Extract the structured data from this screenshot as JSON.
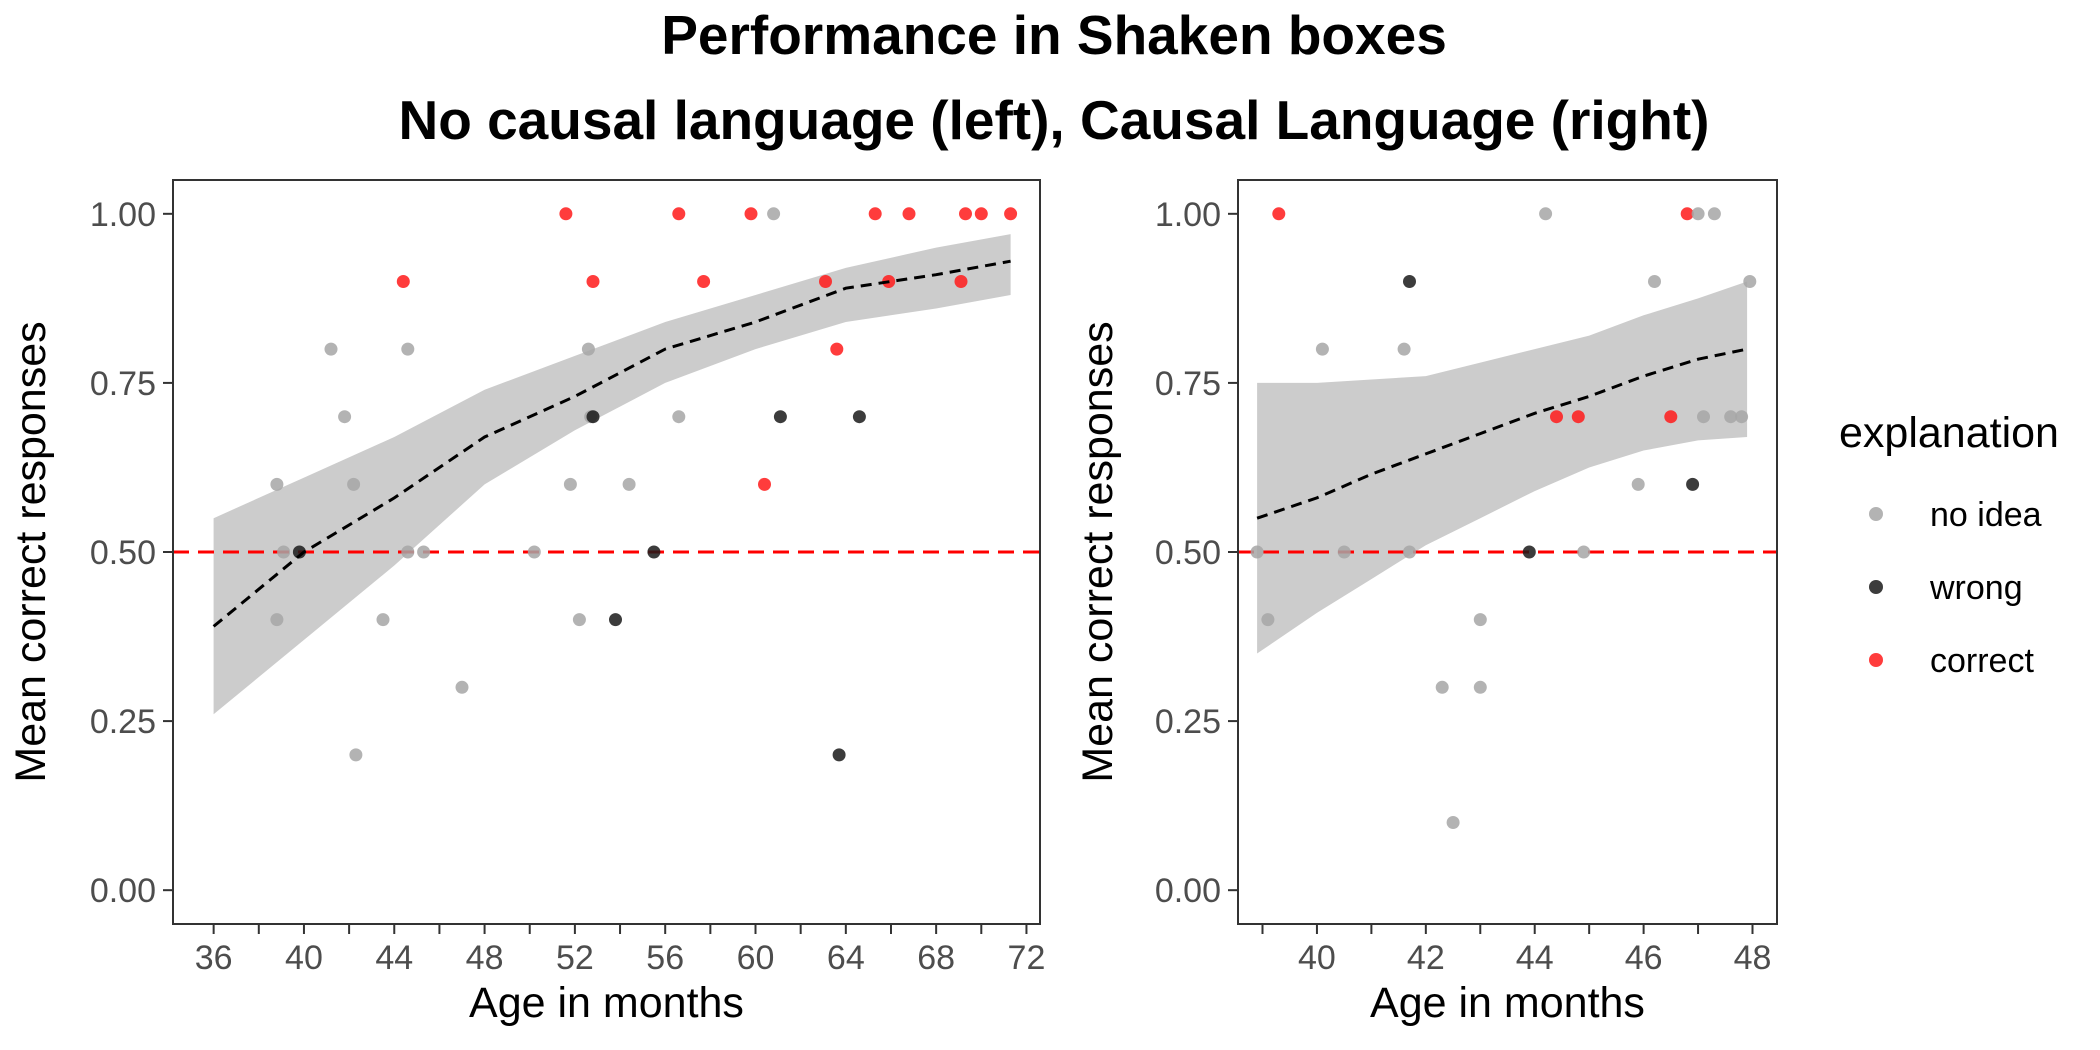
{
  "title": "Performance in Shaken boxes",
  "subtitle": "No causal language (left), Causal Language (right)",
  "legend": {
    "title": "explanation",
    "items": [
      {
        "label": "no idea",
        "color": "#a6a6a6"
      },
      {
        "label": "wrong",
        "color": "#1a1a1a"
      },
      {
        "label": "correct",
        "color": "#ff1a1a"
      }
    ]
  },
  "colors": {
    "no idea": "#a6a6a6",
    "wrong": "#1a1a1a",
    "correct": "#ff1a1a",
    "ribbon": "#cccccc",
    "reference_line": "#ff0000",
    "fit_line": "#000000"
  },
  "chart_data": [
    {
      "type": "scatter",
      "panel": "left",
      "xlabel": "Age in months",
      "ylabel": "Mean correct responses",
      "xlim": [
        34.2,
        72.6
      ],
      "ylim": [
        -0.05,
        1.05
      ],
      "x_ticks": [
        36,
        40,
        44,
        48,
        52,
        56,
        60,
        64,
        68,
        72
      ],
      "x_minor_ticks": [
        38,
        42,
        46,
        50,
        54,
        58,
        62,
        66,
        70
      ],
      "y_ticks": [
        "0.00",
        "0.25",
        "0.50",
        "0.75",
        "1.00"
      ],
      "reference_line": {
        "y": 0.5,
        "style": "dashed"
      },
      "fit": {
        "style": "dashed",
        "x": [
          36,
          40,
          44,
          48,
          52,
          56,
          60,
          64,
          68,
          71.3
        ],
        "y": [
          0.39,
          0.5,
          0.58,
          0.67,
          0.73,
          0.8,
          0.84,
          0.89,
          0.91,
          0.93
        ],
        "lower": [
          0.26,
          0.37,
          0.48,
          0.6,
          0.68,
          0.75,
          0.8,
          0.84,
          0.86,
          0.88
        ],
        "upper": [
          0.55,
          0.61,
          0.67,
          0.74,
          0.79,
          0.84,
          0.88,
          0.92,
          0.95,
          0.97
        ]
      },
      "points": [
        {
          "x": 38.8,
          "y": 0.6,
          "explanation": "no idea"
        },
        {
          "x": 38.8,
          "y": 0.4,
          "explanation": "no idea"
        },
        {
          "x": 39.1,
          "y": 0.5,
          "explanation": "no idea"
        },
        {
          "x": 39.8,
          "y": 0.5,
          "explanation": "wrong"
        },
        {
          "x": 41.2,
          "y": 0.8,
          "explanation": "no idea"
        },
        {
          "x": 41.8,
          "y": 0.7,
          "explanation": "no idea"
        },
        {
          "x": 42.2,
          "y": 0.6,
          "explanation": "no idea"
        },
        {
          "x": 42.3,
          "y": 0.2,
          "explanation": "no idea"
        },
        {
          "x": 43.5,
          "y": 0.4,
          "explanation": "no idea"
        },
        {
          "x": 44.4,
          "y": 0.9,
          "explanation": "correct"
        },
        {
          "x": 44.6,
          "y": 0.8,
          "explanation": "no idea"
        },
        {
          "x": 44.6,
          "y": 0.5,
          "explanation": "no idea"
        },
        {
          "x": 45.3,
          "y": 0.5,
          "explanation": "no idea"
        },
        {
          "x": 47.0,
          "y": 0.3,
          "explanation": "no idea"
        },
        {
          "x": 50.2,
          "y": 0.5,
          "explanation": "no idea"
        },
        {
          "x": 51.6,
          "y": 1.0,
          "explanation": "correct"
        },
        {
          "x": 51.8,
          "y": 0.6,
          "explanation": "no idea"
        },
        {
          "x": 52.2,
          "y": 0.4,
          "explanation": "no idea"
        },
        {
          "x": 52.6,
          "y": 0.8,
          "explanation": "no idea"
        },
        {
          "x": 52.7,
          "y": 0.7,
          "explanation": "no idea"
        },
        {
          "x": 52.8,
          "y": 0.7,
          "explanation": "wrong"
        },
        {
          "x": 52.8,
          "y": 0.9,
          "explanation": "correct"
        },
        {
          "x": 53.8,
          "y": 0.4,
          "explanation": "wrong"
        },
        {
          "x": 54.4,
          "y": 0.6,
          "explanation": "no idea"
        },
        {
          "x": 55.5,
          "y": 0.5,
          "explanation": "wrong"
        },
        {
          "x": 56.6,
          "y": 0.7,
          "explanation": "no idea"
        },
        {
          "x": 56.6,
          "y": 1.0,
          "explanation": "correct"
        },
        {
          "x": 57.7,
          "y": 0.9,
          "explanation": "correct"
        },
        {
          "x": 59.8,
          "y": 1.0,
          "explanation": "correct"
        },
        {
          "x": 60.4,
          "y": 0.6,
          "explanation": "correct"
        },
        {
          "x": 60.8,
          "y": 1.0,
          "explanation": "no idea"
        },
        {
          "x": 61.1,
          "y": 0.7,
          "explanation": "wrong"
        },
        {
          "x": 63.1,
          "y": 0.9,
          "explanation": "correct"
        },
        {
          "x": 63.6,
          "y": 0.8,
          "explanation": "correct"
        },
        {
          "x": 63.7,
          "y": 0.2,
          "explanation": "wrong"
        },
        {
          "x": 64.6,
          "y": 0.7,
          "explanation": "wrong"
        },
        {
          "x": 65.3,
          "y": 1.0,
          "explanation": "correct"
        },
        {
          "x": 65.9,
          "y": 0.9,
          "explanation": "correct"
        },
        {
          "x": 66.8,
          "y": 1.0,
          "explanation": "correct"
        },
        {
          "x": 69.1,
          "y": 0.9,
          "explanation": "correct"
        },
        {
          "x": 69.3,
          "y": 1.0,
          "explanation": "correct"
        },
        {
          "x": 70.0,
          "y": 1.0,
          "explanation": "correct"
        },
        {
          "x": 71.3,
          "y": 1.0,
          "explanation": "correct"
        }
      ]
    },
    {
      "type": "scatter",
      "panel": "right",
      "xlabel": "Age in months",
      "ylabel": "Mean correct responses",
      "xlim": [
        38.55,
        48.45
      ],
      "ylim": [
        -0.05,
        1.05
      ],
      "x_ticks": [
        40,
        42,
        44,
        46,
        48
      ],
      "x_minor_ticks": [
        39,
        41,
        43,
        45,
        47
      ],
      "y_ticks": [
        "0.00",
        "0.25",
        "0.50",
        "0.75",
        "1.00"
      ],
      "reference_line": {
        "y": 0.5,
        "style": "dashed"
      },
      "fit": {
        "style": "dashed",
        "x": [
          38.9,
          40,
          41,
          42,
          43,
          44,
          45,
          46,
          47,
          47.9
        ],
        "y": [
          0.55,
          0.58,
          0.615,
          0.645,
          0.675,
          0.705,
          0.73,
          0.76,
          0.785,
          0.8
        ],
        "lower": [
          0.35,
          0.41,
          0.46,
          0.51,
          0.55,
          0.59,
          0.625,
          0.65,
          0.665,
          0.67
        ],
        "upper": [
          0.75,
          0.75,
          0.755,
          0.76,
          0.78,
          0.8,
          0.82,
          0.85,
          0.875,
          0.9
        ]
      },
      "points": [
        {
          "x": 38.9,
          "y": 0.5,
          "explanation": "no idea"
        },
        {
          "x": 39.1,
          "y": 0.4,
          "explanation": "no idea"
        },
        {
          "x": 39.3,
          "y": 1.0,
          "explanation": "correct"
        },
        {
          "x": 40.1,
          "y": 0.8,
          "explanation": "no idea"
        },
        {
          "x": 40.5,
          "y": 0.5,
          "explanation": "no idea"
        },
        {
          "x": 41.6,
          "y": 0.8,
          "explanation": "no idea"
        },
        {
          "x": 41.7,
          "y": 0.9,
          "explanation": "wrong"
        },
        {
          "x": 41.7,
          "y": 0.5,
          "explanation": "no idea"
        },
        {
          "x": 42.3,
          "y": 0.3,
          "explanation": "no idea"
        },
        {
          "x": 42.5,
          "y": 0.1,
          "explanation": "no idea"
        },
        {
          "x": 43.0,
          "y": 0.4,
          "explanation": "no idea"
        },
        {
          "x": 43.0,
          "y": 0.3,
          "explanation": "no idea"
        },
        {
          "x": 43.9,
          "y": 0.5,
          "explanation": "wrong"
        },
        {
          "x": 44.2,
          "y": 1.0,
          "explanation": "no idea"
        },
        {
          "x": 44.4,
          "y": 0.7,
          "explanation": "correct"
        },
        {
          "x": 44.8,
          "y": 0.7,
          "explanation": "correct"
        },
        {
          "x": 44.9,
          "y": 0.5,
          "explanation": "no idea"
        },
        {
          "x": 45.9,
          "y": 0.6,
          "explanation": "no idea"
        },
        {
          "x": 46.2,
          "y": 0.9,
          "explanation": "no idea"
        },
        {
          "x": 46.5,
          "y": 0.7,
          "explanation": "correct"
        },
        {
          "x": 46.8,
          "y": 1.0,
          "explanation": "correct"
        },
        {
          "x": 46.9,
          "y": 0.6,
          "explanation": "wrong"
        },
        {
          "x": 47.0,
          "y": 1.0,
          "explanation": "no idea"
        },
        {
          "x": 47.1,
          "y": 0.7,
          "explanation": "no idea"
        },
        {
          "x": 47.3,
          "y": 1.0,
          "explanation": "no idea"
        },
        {
          "x": 47.6,
          "y": 0.7,
          "explanation": "no idea"
        },
        {
          "x": 47.8,
          "y": 0.7,
          "explanation": "no idea"
        },
        {
          "x": 47.95,
          "y": 0.9,
          "explanation": "no idea"
        }
      ]
    }
  ]
}
